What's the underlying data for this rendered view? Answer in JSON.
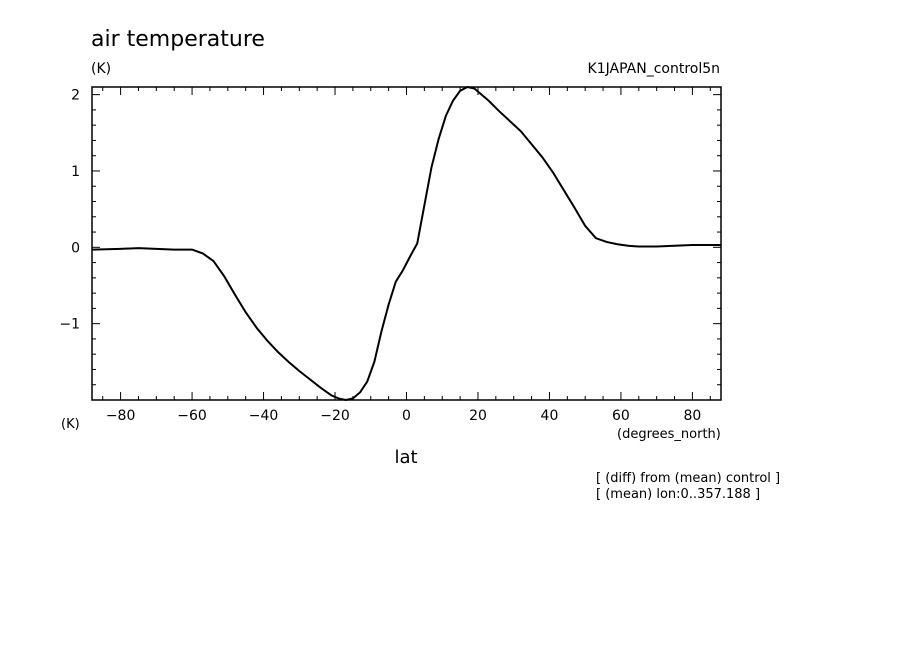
{
  "chart_data": {
    "type": "line",
    "title": "air temperature",
    "title_units": "(K)",
    "run_label": "K1JAPAN_control5n",
    "xlabel": "lat",
    "x_units": "(degrees_north)",
    "y_units": "(K)",
    "xlim": [
      -88,
      88
    ],
    "ylim": [
      -2,
      2.1
    ],
    "x_ticks": [
      -80,
      -60,
      -40,
      -20,
      0,
      20,
      40,
      60,
      80
    ],
    "x_tick_labels": [
      "−80",
      "−60",
      "−40",
      "−20",
      "0",
      "20",
      "40",
      "60",
      "80"
    ],
    "y_ticks": [
      -1,
      0,
      1,
      2
    ],
    "y_tick_labels": [
      "−1",
      "0",
      "1",
      "2"
    ],
    "grid": false,
    "legend": "none",
    "notes": [
      "[ (diff) from (mean) control ]",
      "[ (mean) lon:0..357.188 ]"
    ],
    "series": [
      {
        "x": [
          -88,
          -80,
          -75,
          -70,
          -65,
          -60,
          -57,
          -54,
          -51,
          -48,
          -45,
          -42,
          -39,
          -36,
          -33,
          -30,
          -27,
          -24,
          -21,
          -19,
          -17,
          -15,
          -13,
          -11,
          -9,
          -7,
          -5,
          -3,
          -1,
          1,
          3,
          5,
          7,
          9,
          11,
          13,
          15,
          17,
          19,
          21,
          23,
          26,
          29,
          32,
          35,
          38,
          41,
          44,
          47,
          50,
          53,
          56,
          59,
          62,
          65,
          70,
          75,
          80,
          85,
          88
        ],
        "y": [
          -0.03,
          -0.02,
          -0.01,
          -0.02,
          -0.03,
          -0.03,
          -0.08,
          -0.18,
          -0.38,
          -0.62,
          -0.85,
          -1.05,
          -1.22,
          -1.37,
          -1.5,
          -1.62,
          -1.73,
          -1.84,
          -1.94,
          -1.98,
          -2.0,
          -1.98,
          -1.9,
          -1.76,
          -1.5,
          -1.1,
          -0.75,
          -0.45,
          -0.3,
          -0.12,
          0.05,
          0.55,
          1.05,
          1.42,
          1.72,
          1.92,
          2.05,
          2.1,
          2.08,
          2.0,
          1.92,
          1.78,
          1.65,
          1.52,
          1.35,
          1.18,
          0.98,
          0.75,
          0.52,
          0.28,
          0.12,
          0.07,
          0.04,
          0.02,
          0.01,
          0.01,
          0.02,
          0.03,
          0.03,
          0.03
        ]
      }
    ]
  }
}
